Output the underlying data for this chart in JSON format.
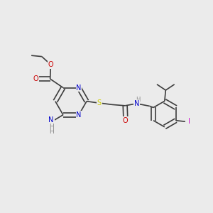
{
  "background_color": "#ebebeb",
  "bond_color": "#3d3d3d",
  "atom_colors": {
    "N": "#0000cc",
    "O": "#cc0000",
    "S": "#cccc00",
    "I": "#cc00cc",
    "C": "#3d3d3d",
    "H": "#888888",
    "NH2": "#888888"
  },
  "figsize": [
    3.0,
    3.0
  ],
  "dpi": 100
}
